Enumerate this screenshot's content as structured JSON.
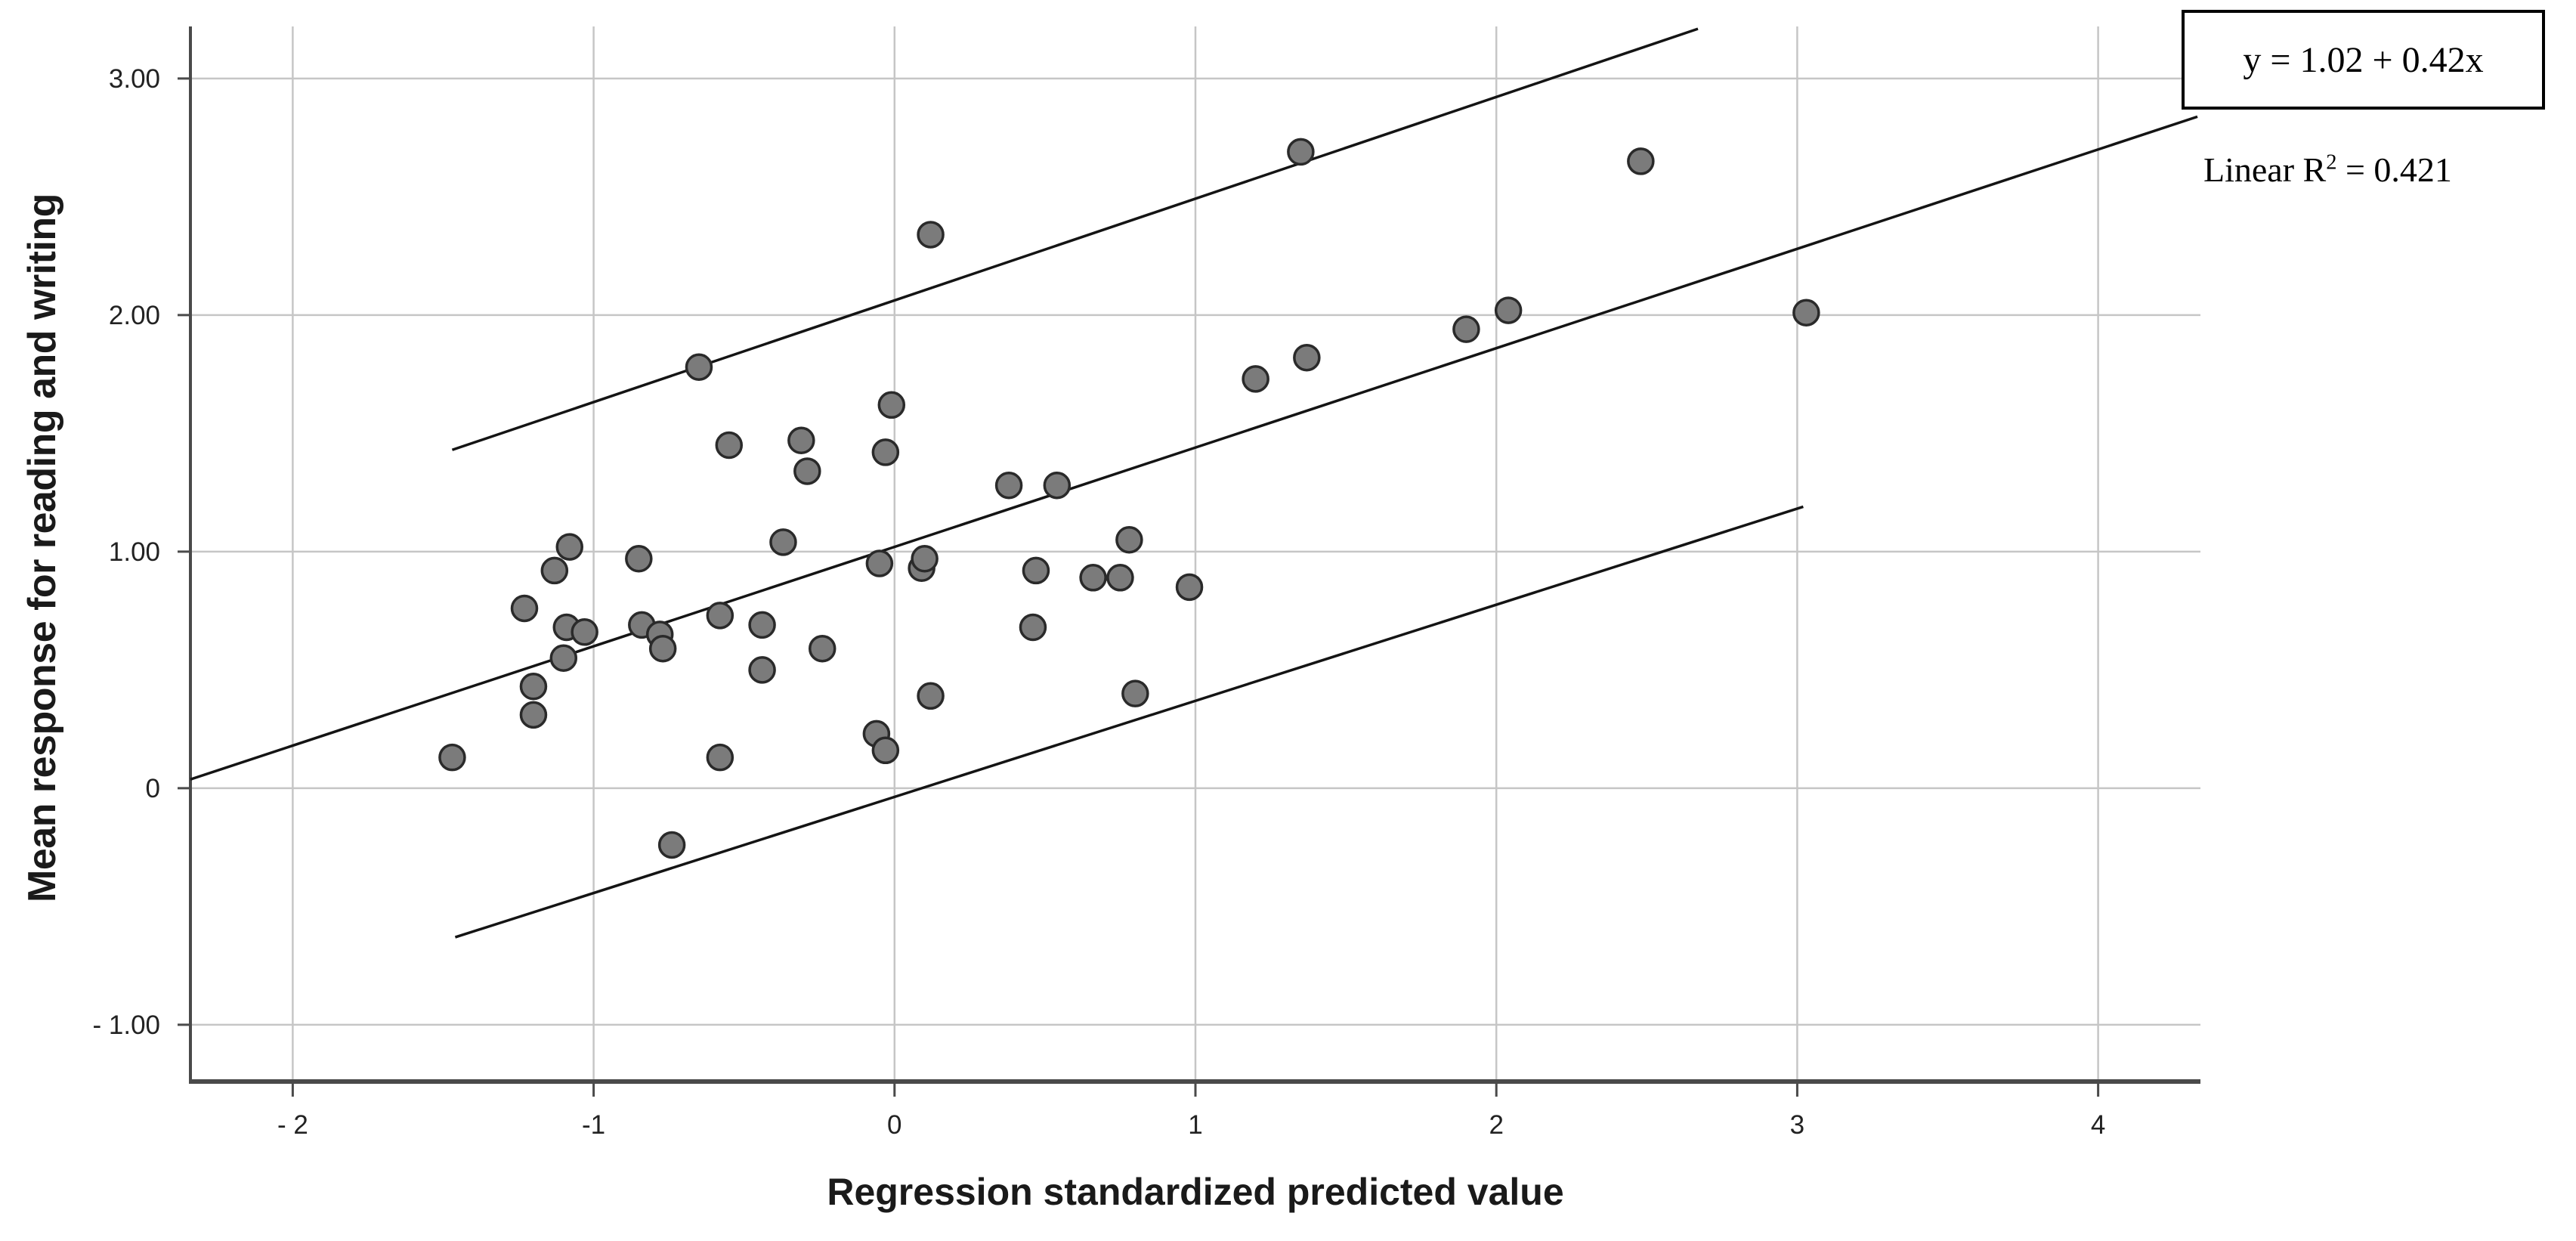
{
  "chart_data": {
    "type": "scatter",
    "title": "",
    "xlabel": "Regression standardized predicted value",
    "ylabel": "Mean response for reading and writing",
    "xlim": [
      -2.34,
      4.34
    ],
    "ylim": [
      -1.24,
      3.22
    ],
    "grid": true,
    "x_ticks": [
      -2,
      -1,
      0,
      1,
      2,
      3,
      4
    ],
    "x_tick_labels": [
      "- 2",
      "-1",
      "0",
      "1",
      "2",
      "3",
      "4"
    ],
    "y_ticks": [
      3,
      2,
      1,
      0,
      -1
    ],
    "y_tick_labels": [
      "3.00",
      "2.00",
      "1.00",
      "0",
      "- 1.00"
    ],
    "points": [
      [
        -1.47,
        0.13
      ],
      [
        -1.23,
        0.76
      ],
      [
        -1.2,
        0.43
      ],
      [
        -1.2,
        0.31
      ],
      [
        -1.13,
        0.92
      ],
      [
        -1.08,
        1.02
      ],
      [
        -1.09,
        0.68
      ],
      [
        -1.03,
        0.66
      ],
      [
        -1.1,
        0.55
      ],
      [
        -0.85,
        0.97
      ],
      [
        -0.84,
        0.69
      ],
      [
        -0.78,
        0.65
      ],
      [
        -0.77,
        0.59
      ],
      [
        -0.74,
        -0.24
      ],
      [
        -0.65,
        1.78
      ],
      [
        -0.58,
        0.73
      ],
      [
        -0.58,
        0.13
      ],
      [
        -0.55,
        1.45
      ],
      [
        -0.44,
        0.69
      ],
      [
        -0.44,
        0.5
      ],
      [
        -0.37,
        1.04
      ],
      [
        -0.31,
        1.47
      ],
      [
        -0.29,
        1.34
      ],
      [
        -0.24,
        0.59
      ],
      [
        -0.06,
        0.23
      ],
      [
        -0.03,
        0.16
      ],
      [
        -0.05,
        0.95
      ],
      [
        -0.03,
        1.42
      ],
      [
        -0.01,
        1.62
      ],
      [
        0.09,
        0.93
      ],
      [
        0.1,
        0.97
      ],
      [
        0.12,
        0.39
      ],
      [
        0.12,
        2.34
      ],
      [
        0.38,
        1.28
      ],
      [
        0.46,
        0.68
      ],
      [
        0.47,
        0.92
      ],
      [
        0.54,
        1.28
      ],
      [
        0.66,
        0.89
      ],
      [
        0.75,
        0.89
      ],
      [
        0.78,
        1.05
      ],
      [
        0.8,
        0.4
      ],
      [
        0.98,
        0.85
      ],
      [
        1.2,
        1.73
      ],
      [
        1.35,
        2.69
      ],
      [
        1.37,
        1.82
      ],
      [
        1.9,
        1.94
      ],
      [
        2.04,
        2.02
      ],
      [
        2.48,
        2.65
      ],
      [
        3.03,
        2.01
      ]
    ],
    "fit_line": {
      "label": "y = 1.02 + 0.42x",
      "intercept": 1.02,
      "slope": 0.42,
      "x_start": -2.34,
      "x_end": 4.33
    },
    "upper_band_line": {
      "x_start": -1.47,
      "y_start": 1.43,
      "x_end": 2.67,
      "y_end": 3.21
    },
    "lower_band_line": {
      "x_start": -1.46,
      "y_start": -0.63,
      "x_end": 3.02,
      "y_end": 1.19
    },
    "annotation": {
      "equation": "y = 1.02 + 0.42x",
      "r2_prefix": "Linear R",
      "r2_sup": "2",
      "r2_suffix": " = 0.421"
    },
    "legend_position": "top-right",
    "colors": {
      "point_fill": "#7b7b7b",
      "point_stroke": "#2a2a2a",
      "grid": "#c6c6c6",
      "axis": "#4a4a4a",
      "line": "#141414",
      "text": "#222222"
    }
  }
}
